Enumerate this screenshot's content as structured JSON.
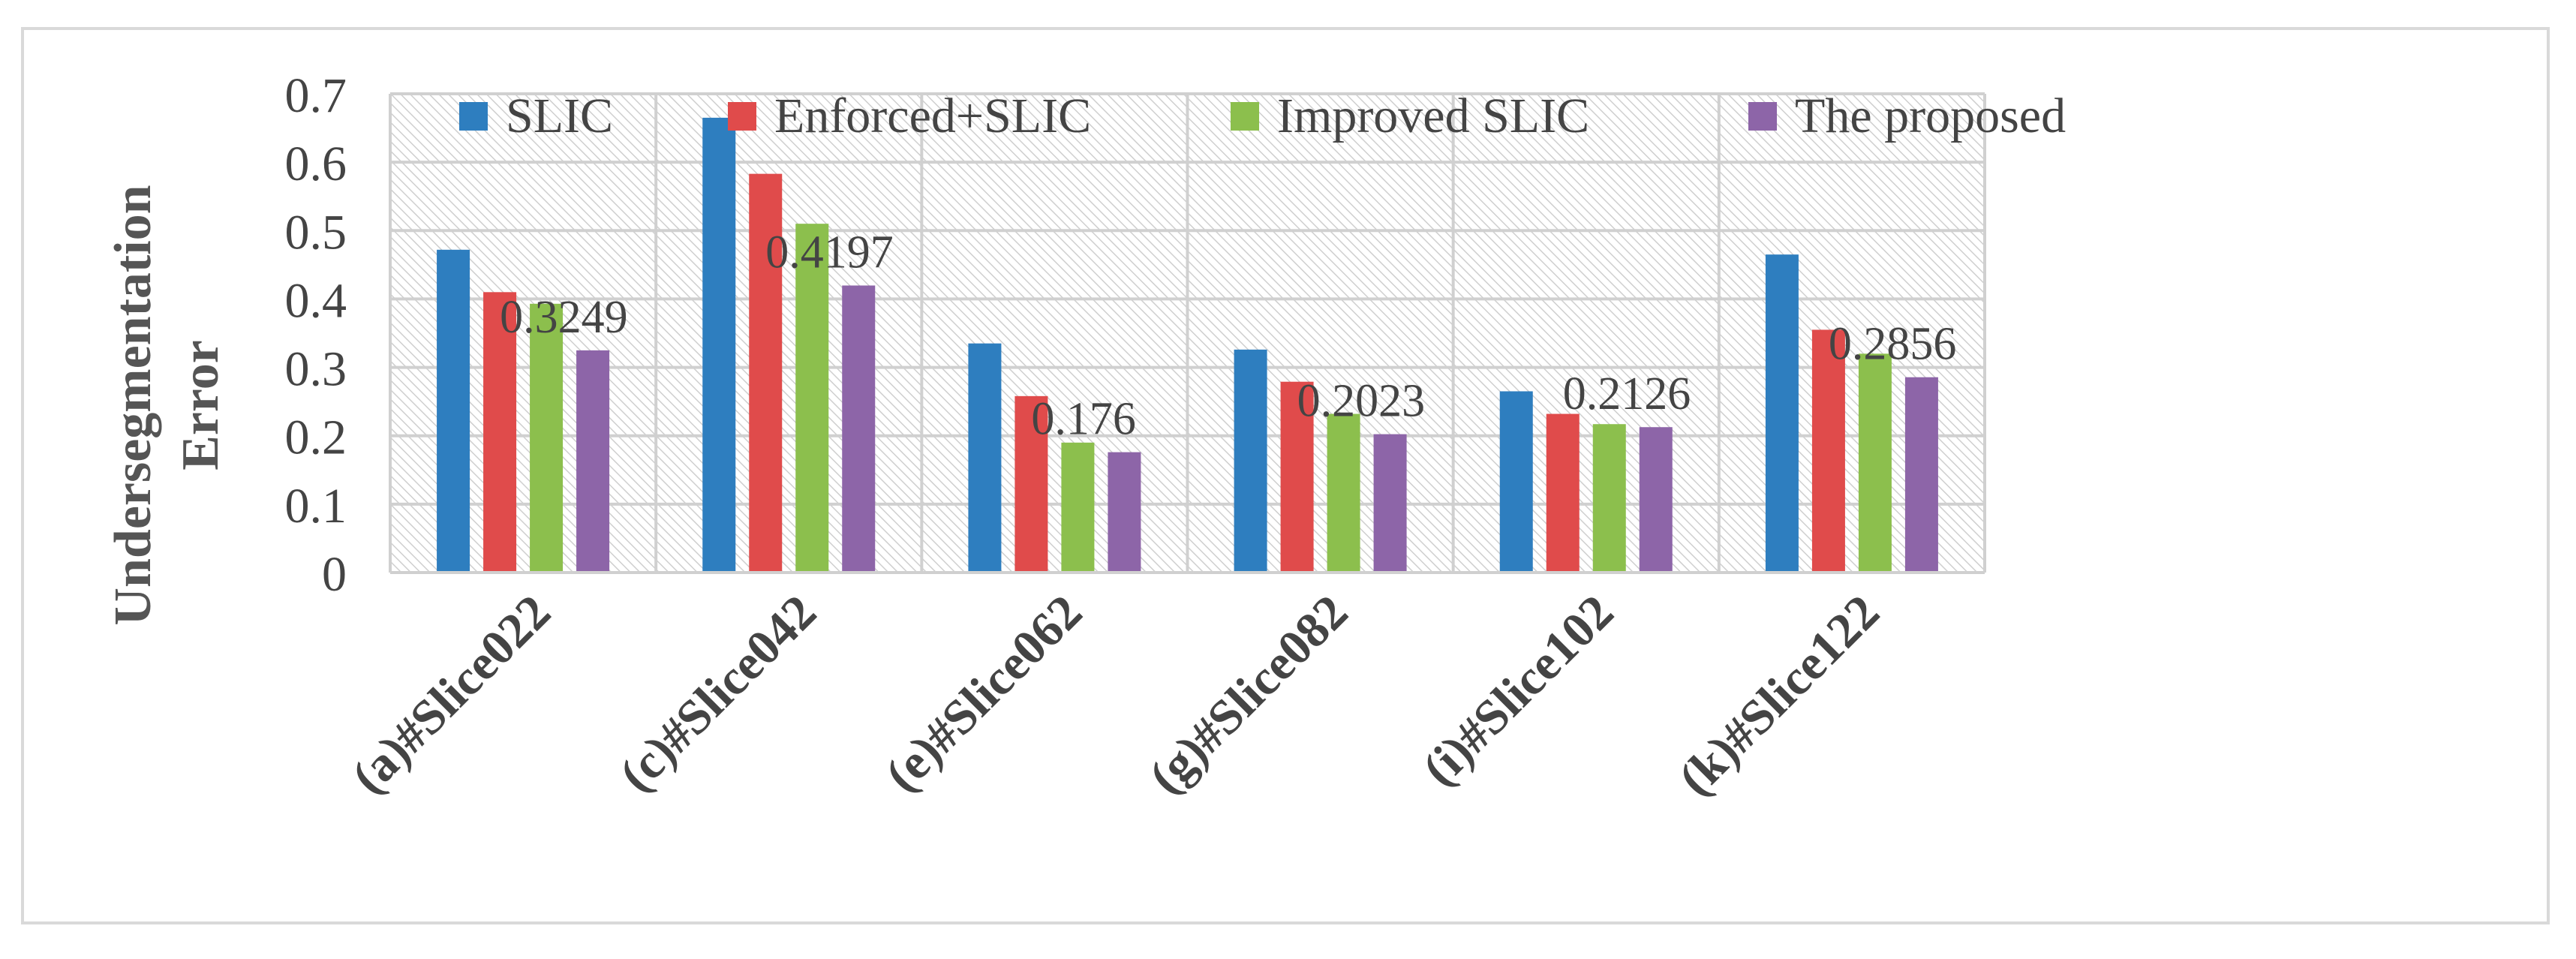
{
  "chart_data": {
    "type": "bar",
    "title": "",
    "xlabel": "",
    "ylabel": "Undersegmentation Error",
    "ylabel_lines": [
      "Undersegmentation",
      "Error"
    ],
    "ylim": [
      0,
      0.7
    ],
    "yticks": [
      "0",
      "0.1",
      "0.2",
      "0.3",
      "0.4",
      "0.5",
      "0.6",
      "0.7"
    ],
    "grid": true,
    "legend_position": "top",
    "categories": [
      "(a)#Slice022",
      "(c)#Slice042",
      "(e)#Slice062",
      "(g)#Slice082",
      "(i)#Slice102",
      "(k)#Slice122"
    ],
    "series": [
      {
        "name": "SLIC",
        "color": "#2e7ebf",
        "values": [
          0.472,
          0.665,
          0.335,
          0.326,
          0.265,
          0.465
        ]
      },
      {
        "name": "Enforced+SLIC",
        "color": "#e04b4b",
        "values": [
          0.41,
          0.583,
          0.258,
          0.279,
          0.232,
          0.355
        ]
      },
      {
        "name": "Improved SLIC",
        "color": "#8cbf4d",
        "values": [
          0.393,
          0.51,
          0.19,
          0.232,
          0.217,
          0.32
        ]
      },
      {
        "name": "The proposed",
        "color": "#8d65a8",
        "values": [
          0.3249,
          0.4197,
          0.176,
          0.2023,
          0.2126,
          0.2856
        ]
      }
    ],
    "data_labels": {
      "series": "The proposed",
      "values": [
        "0.3249",
        "0.4197",
        "0.176",
        "0.2023",
        "0.2126",
        "0.2856"
      ]
    }
  }
}
